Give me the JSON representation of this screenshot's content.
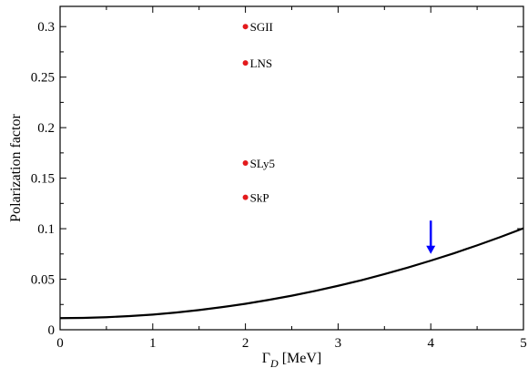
{
  "chart_data": {
    "type": "scatter",
    "xlabel": "Γ",
    "xlabel_sub": "D",
    "xlabel_unit": " [MeV]",
    "ylabel": "Polarization factor",
    "xlim": [
      0,
      5
    ],
    "ylim": [
      0,
      0.32
    ],
    "xticks": [
      0,
      1,
      2,
      3,
      4,
      5
    ],
    "xtick_labels": [
      "0",
      "1",
      "2",
      "3",
      "4",
      "5"
    ],
    "yticks": [
      0,
      0.05,
      0.1,
      0.15,
      0.2,
      0.25,
      0.3
    ],
    "ytick_labels": [
      "0",
      "0.05",
      "0.1",
      "0.15",
      "0.2",
      "0.25",
      "0.3"
    ],
    "grid": false,
    "points": [
      {
        "label": "SGII",
        "x": 2,
        "y": 0.3
      },
      {
        "label": "LNS",
        "x": 2,
        "y": 0.264
      },
      {
        "label": "SLy5",
        "x": 2,
        "y": 0.165
      },
      {
        "label": "SkP",
        "x": 2,
        "y": 0.131
      }
    ],
    "point_color": "#e31a1c",
    "curve": {
      "x": [
        0,
        0.25,
        0.5,
        0.75,
        1,
        1.25,
        1.5,
        1.75,
        2,
        2.25,
        2.5,
        2.75,
        3,
        3.25,
        3.5,
        3.75,
        4,
        4.25,
        4.5,
        4.75,
        5
      ],
      "y": [
        0.0115,
        0.0117,
        0.0124,
        0.0135,
        0.015,
        0.017,
        0.0195,
        0.0224,
        0.0257,
        0.0295,
        0.0337,
        0.0384,
        0.0435,
        0.049,
        0.055,
        0.0615,
        0.0684,
        0.0757,
        0.0835,
        0.0917,
        0.1004
      ],
      "color": "#000000"
    },
    "arrow": {
      "x": 4,
      "y_from": 0.108,
      "y_to": 0.075,
      "color": "#0000ff"
    }
  }
}
